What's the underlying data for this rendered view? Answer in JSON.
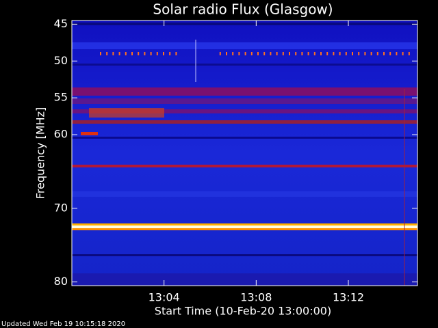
{
  "chart_data": {
    "type": "spectrogram",
    "title": "Solar radio Flux (Glasgow)",
    "xlabel": "Start Time (10-Feb-20 13:00:00)",
    "ylabel": "Frequency [MHz]",
    "xlim": [
      0,
      15
    ],
    "xticks": [
      {
        "value": 4,
        "label": "13:04"
      },
      {
        "value": 8,
        "label": "13:08"
      },
      {
        "value": 12,
        "label": "13:12"
      }
    ],
    "ylim": [
      44.5,
      80.5
    ],
    "yticks": [
      45,
      50,
      55,
      60,
      70,
      80
    ],
    "footer": "Updated Wed Feb 19 10:15:18 2020"
  }
}
